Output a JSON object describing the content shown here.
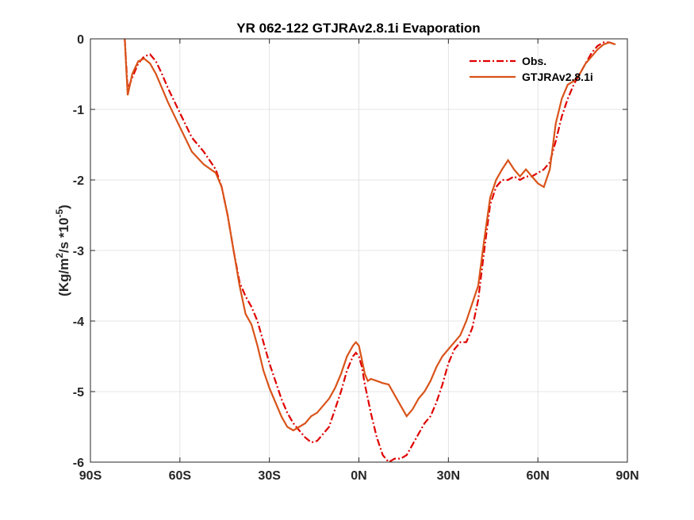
{
  "chart_data": {
    "type": "line",
    "title": "YR 062-122 GTJRAv2.8.1i Evaporation",
    "ylabel_parts": {
      "base": "(Kg/m",
      "sup1": "2",
      "mid": "/s *10",
      "sup2": "-5",
      "end": ")"
    },
    "xlim": [
      -90,
      90
    ],
    "ylim": [
      -6,
      0
    ],
    "x_ticks": [
      -90,
      -60,
      -30,
      0,
      30,
      60,
      90
    ],
    "x_tick_labels": [
      "90S",
      "60S",
      "30S",
      "0N",
      "30N",
      "60N",
      "90N"
    ],
    "y_ticks": [
      -6,
      -5,
      -4,
      -3,
      -2,
      -1,
      0
    ],
    "y_tick_labels": [
      "-6",
      "-5",
      "-4",
      "-3",
      "-2",
      "-1",
      "0"
    ],
    "grid": true,
    "legend_position": "top-right",
    "series": [
      {
        "name": "Obs.",
        "color": "#e00000",
        "dash": "dashdot",
        "x": [
          -78.5,
          -78,
          -77.5,
          -76,
          -74,
          -72,
          -70,
          -68,
          -66,
          -64,
          -60,
          -56,
          -52,
          -48,
          -46,
          -44,
          -42,
          -40,
          -38,
          -36,
          -34,
          -32,
          -30,
          -28,
          -26,
          -24,
          -22,
          -20,
          -18,
          -16,
          -14,
          -12,
          -10,
          -8,
          -6,
          -4,
          -2,
          -1,
          0,
          1,
          2,
          3,
          4,
          6,
          8,
          10,
          12,
          14,
          16,
          18,
          20,
          22,
          24,
          26,
          28,
          30,
          32,
          34,
          36,
          38,
          40,
          42,
          44,
          46,
          48,
          50,
          52,
          54,
          56,
          58,
          60,
          62,
          64,
          66,
          68,
          70,
          72,
          74,
          76,
          78,
          80,
          82,
          84,
          86
        ],
        "y": [
          0,
          -0.35,
          -0.72,
          -0.55,
          -0.35,
          -0.25,
          -0.22,
          -0.32,
          -0.5,
          -0.7,
          -1.05,
          -1.4,
          -1.6,
          -1.85,
          -2.1,
          -2.5,
          -3.0,
          -3.45,
          -3.65,
          -3.8,
          -4.0,
          -4.3,
          -4.6,
          -4.85,
          -5.1,
          -5.3,
          -5.45,
          -5.55,
          -5.65,
          -5.72,
          -5.7,
          -5.6,
          -5.5,
          -5.25,
          -5.0,
          -4.7,
          -4.5,
          -4.45,
          -4.5,
          -4.65,
          -4.9,
          -5.1,
          -5.3,
          -5.65,
          -5.9,
          -6.0,
          -5.95,
          -5.95,
          -5.9,
          -5.75,
          -5.6,
          -5.45,
          -5.35,
          -5.15,
          -4.9,
          -4.6,
          -4.4,
          -4.3,
          -4.3,
          -4.1,
          -3.7,
          -3.0,
          -2.35,
          -2.1,
          -2.0,
          -2.0,
          -1.95,
          -2.0,
          -1.95,
          -1.95,
          -1.9,
          -1.85,
          -1.75,
          -1.45,
          -1.1,
          -0.85,
          -0.65,
          -0.5,
          -0.35,
          -0.2,
          -0.1,
          -0.05,
          -0.05,
          -0.08
        ]
      },
      {
        "name": "GTJRAv2.8.1i",
        "color": "#d95319",
        "dash": "solid",
        "x": [
          -78.5,
          -78,
          -77.5,
          -76,
          -74,
          -72,
          -70,
          -68,
          -66,
          -64,
          -60,
          -56,
          -52,
          -48,
          -46,
          -44,
          -42,
          -40,
          -38,
          -36,
          -34,
          -32,
          -30,
          -28,
          -26,
          -24,
          -22,
          -20,
          -18,
          -16,
          -14,
          -12,
          -10,
          -8,
          -6,
          -4,
          -2,
          -1,
          0,
          1,
          2,
          3,
          4,
          6,
          8,
          10,
          12,
          14,
          16,
          18,
          20,
          22,
          24,
          26,
          28,
          30,
          32,
          34,
          36,
          38,
          40,
          42,
          44,
          46,
          48,
          50,
          52,
          54,
          56,
          58,
          60,
          62,
          64,
          66,
          68,
          70,
          72,
          74,
          76,
          78,
          80,
          82,
          84,
          86
        ],
        "y": [
          0,
          -0.4,
          -0.8,
          -0.5,
          -0.32,
          -0.28,
          -0.35,
          -0.5,
          -0.7,
          -0.9,
          -1.25,
          -1.6,
          -1.78,
          -1.9,
          -2.1,
          -2.5,
          -3.0,
          -3.5,
          -3.9,
          -4.05,
          -4.35,
          -4.7,
          -4.95,
          -5.15,
          -5.35,
          -5.5,
          -5.55,
          -5.5,
          -5.45,
          -5.35,
          -5.3,
          -5.2,
          -5.1,
          -4.95,
          -4.75,
          -4.5,
          -4.35,
          -4.3,
          -4.35,
          -4.55,
          -4.75,
          -4.85,
          -4.82,
          -4.85,
          -4.88,
          -4.9,
          -5.05,
          -5.2,
          -5.35,
          -5.25,
          -5.1,
          -5.0,
          -4.85,
          -4.65,
          -4.5,
          -4.4,
          -4.3,
          -4.2,
          -4.0,
          -3.75,
          -3.5,
          -2.85,
          -2.25,
          -2.0,
          -1.85,
          -1.72,
          -1.85,
          -1.95,
          -1.85,
          -1.95,
          -2.05,
          -2.1,
          -1.85,
          -1.2,
          -0.85,
          -0.65,
          -0.6,
          -0.5,
          -0.35,
          -0.25,
          -0.15,
          -0.08,
          -0.05,
          -0.08
        ]
      }
    ]
  }
}
